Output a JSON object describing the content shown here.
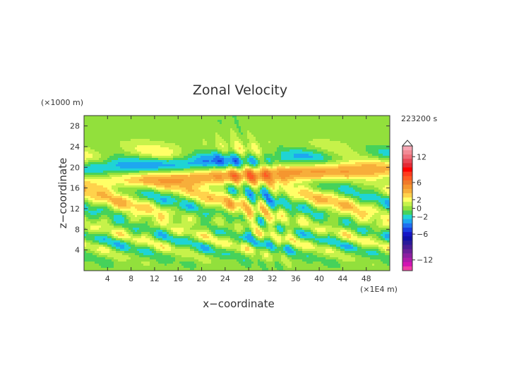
{
  "chart_data": {
    "type": "heatmap",
    "title": "Zonal Velocity",
    "xlabel": "x−coordinate",
    "ylabel": "z−coordinate",
    "x_unit": "(×1E4 m)",
    "y_unit": "(×1000 m)",
    "time_label": "223200 s",
    "xlim": [
      0,
      52
    ],
    "ylim": [
      0,
      30
    ],
    "x_ticks": [
      "4",
      "8",
      "12",
      "16",
      "20",
      "24",
      "28",
      "32",
      "36",
      "40",
      "44",
      "48"
    ],
    "y_ticks": [
      "4",
      "8",
      "12",
      "16",
      "20",
      "24",
      "28"
    ],
    "colorbar": {
      "range": [
        -14,
        14
      ],
      "tick_labels": [
        "12",
        "6",
        "2",
        "0",
        "−2",
        "−6",
        "−12"
      ],
      "levels": [
        14,
        13,
        12,
        11,
        10,
        9,
        8,
        7,
        6,
        5,
        4,
        3,
        2,
        1,
        0,
        -1,
        -2,
        -3,
        -4,
        -5,
        -6,
        -7,
        -8,
        -9,
        -10,
        -11,
        -12,
        -13,
        -14
      ],
      "colors": [
        "#f7a5b3",
        "#f28b95",
        "#ee6d78",
        "#e84855",
        "#e32a35",
        "#ff0000",
        "#ff3b1e",
        "#ff5a23",
        "#f07a2a",
        "#f5962f",
        "#f7ae3a",
        "#ffd24b",
        "#ffff66",
        "#c6f24a",
        "#92e03c",
        "#46d25a",
        "#1fd4d4",
        "#1ea7f0",
        "#1f6ff0",
        "#1a3ee0",
        "#1616c6",
        "#1010a8",
        "#2a1a9a",
        "#4a1c96",
        "#6a1f98",
        "#8c1fa0",
        "#ad1ca8",
        "#d214b3",
        "#f03ca6"
      ]
    }
  }
}
